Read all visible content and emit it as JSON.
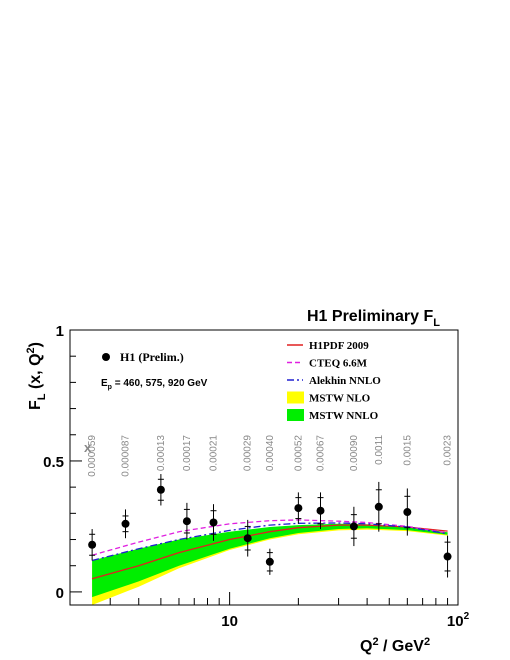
{
  "chart_data": {
    "type": "scatter",
    "title_main": "H1 Preliminary F",
    "title_sub": "L",
    "ylabel_main": "F",
    "ylabel_sub": "L",
    "ylabel_rest": " (x, Q",
    "ylabel_sup": "2",
    "ylabel_end": ")",
    "xlabel_main": "Q",
    "xlabel_sup1": "2",
    "xlabel_mid": " / GeV",
    "xlabel_sup2": "2",
    "x_scale": "log",
    "xlim": [
      2.0,
      100
    ],
    "ylim": [
      -0.05,
      1.0
    ],
    "y_ticks": [
      {
        "value": 0,
        "label": "0"
      },
      {
        "value": 0.5,
        "label": "0.5"
      },
      {
        "value": 1,
        "label": "1"
      }
    ],
    "x_tick_labels": [
      {
        "value": 10,
        "label": "10"
      },
      {
        "value": 100,
        "label": "10",
        "sup": "2"
      }
    ],
    "x_minor_ticks": [
      2,
      3,
      4,
      5,
      6,
      7,
      8,
      9,
      20,
      30,
      40,
      50,
      60,
      70,
      80,
      90
    ],
    "x_row_label": "x",
    "x_values_row": [
      {
        "q2": 2.5,
        "label": "0.000059"
      },
      {
        "q2": 3.5,
        "label": "0.000087"
      },
      {
        "q2": 5.0,
        "label": "0.00013"
      },
      {
        "q2": 6.5,
        "label": "0.00017"
      },
      {
        "q2": 8.5,
        "label": "0.00021"
      },
      {
        "q2": 12,
        "label": "0.00029"
      },
      {
        "q2": 15,
        "label": "0.00040"
      },
      {
        "q2": 20,
        "label": "0.00052"
      },
      {
        "q2": 25,
        "label": "0.00067"
      },
      {
        "q2": 35,
        "label": "0.00090"
      },
      {
        "q2": 45,
        "label": "0.0011"
      },
      {
        "q2": 60,
        "label": "0.0015"
      },
      {
        "q2": 90,
        "label": "0.0023"
      }
    ],
    "points": [
      {
        "q2": 2.5,
        "y": 0.18,
        "stat": 0.04,
        "tot": 0.06
      },
      {
        "q2": 3.5,
        "y": 0.26,
        "stat": 0.03,
        "tot": 0.055
      },
      {
        "q2": 5.0,
        "y": 0.39,
        "stat": 0.04,
        "tot": 0.06
      },
      {
        "q2": 6.5,
        "y": 0.27,
        "stat": 0.045,
        "tot": 0.07
      },
      {
        "q2": 8.5,
        "y": 0.265,
        "stat": 0.045,
        "tot": 0.07
      },
      {
        "q2": 12,
        "y": 0.205,
        "stat": 0.045,
        "tot": 0.07
      },
      {
        "q2": 15,
        "y": 0.115,
        "stat": 0.035,
        "tot": 0.05
      },
      {
        "q2": 20,
        "y": 0.32,
        "stat": 0.04,
        "tot": 0.06
      },
      {
        "q2": 25,
        "y": 0.31,
        "stat": 0.05,
        "tot": 0.07
      },
      {
        "q2": 35,
        "y": 0.25,
        "stat": 0.045,
        "tot": 0.075
      },
      {
        "q2": 45,
        "y": 0.325,
        "stat": 0.065,
        "tot": 0.095
      },
      {
        "q2": 60,
        "y": 0.305,
        "stat": 0.06,
        "tot": 0.09
      },
      {
        "q2": 90,
        "y": 0.135,
        "stat": 0.055,
        "tot": 0.08
      }
    ],
    "curves": [
      {
        "name": "H1PDF 2009",
        "color": "#e02020",
        "dash": "",
        "points": [
          [
            2.5,
            0.05
          ],
          [
            4,
            0.1
          ],
          [
            6,
            0.15
          ],
          [
            10,
            0.2
          ],
          [
            15,
            0.23
          ],
          [
            20,
            0.245
          ],
          [
            30,
            0.255
          ],
          [
            40,
            0.255
          ],
          [
            60,
            0.248
          ],
          [
            90,
            0.232
          ]
        ]
      },
      {
        "name": "CTEQ 6.6M",
        "color": "#e020e0",
        "dash": "5,3",
        "points": [
          [
            2.5,
            0.14
          ],
          [
            4,
            0.19
          ],
          [
            6,
            0.23
          ],
          [
            10,
            0.26
          ],
          [
            15,
            0.272
          ],
          [
            20,
            0.275
          ],
          [
            30,
            0.27
          ],
          [
            40,
            0.265
          ],
          [
            60,
            0.25
          ],
          [
            90,
            0.225
          ]
        ]
      },
      {
        "name": "Alekhin NNLO",
        "color": "#2020d0",
        "dash": "7,3,2,3",
        "points": [
          [
            2.5,
            0.12
          ],
          [
            4,
            0.165
          ],
          [
            6,
            0.2
          ],
          [
            10,
            0.235
          ],
          [
            15,
            0.255
          ],
          [
            20,
            0.262
          ],
          [
            30,
            0.263
          ],
          [
            40,
            0.26
          ],
          [
            60,
            0.248
          ],
          [
            90,
            0.222
          ]
        ]
      }
    ],
    "bands": [
      {
        "name": "MSTW NLO",
        "color": "#ffff00",
        "upper": [
          [
            2.5,
            0.11
          ],
          [
            4,
            0.16
          ],
          [
            6,
            0.195
          ],
          [
            10,
            0.225
          ],
          [
            15,
            0.242
          ],
          [
            20,
            0.25
          ],
          [
            30,
            0.255
          ],
          [
            40,
            0.255
          ],
          [
            60,
            0.245
          ],
          [
            90,
            0.225
          ]
        ],
        "lower": [
          [
            2.5,
            -0.05
          ],
          [
            4,
            0.02
          ],
          [
            6,
            0.09
          ],
          [
            10,
            0.16
          ],
          [
            15,
            0.2
          ],
          [
            20,
            0.22
          ],
          [
            30,
            0.235
          ],
          [
            40,
            0.238
          ],
          [
            60,
            0.232
          ],
          [
            90,
            0.215
          ]
        ]
      },
      {
        "name": "MSTW NNLO",
        "color": "#00ee00",
        "upper": [
          [
            2.5,
            0.12
          ],
          [
            4,
            0.165
          ],
          [
            6,
            0.2
          ],
          [
            10,
            0.23
          ],
          [
            15,
            0.248
          ],
          [
            20,
            0.255
          ],
          [
            30,
            0.26
          ],
          [
            40,
            0.258
          ],
          [
            60,
            0.248
          ],
          [
            90,
            0.228
          ]
        ],
        "lower": [
          [
            2.5,
            -0.02
          ],
          [
            4,
            0.04
          ],
          [
            6,
            0.1
          ],
          [
            10,
            0.165
          ],
          [
            15,
            0.205
          ],
          [
            20,
            0.225
          ],
          [
            30,
            0.24
          ],
          [
            40,
            0.243
          ],
          [
            60,
            0.236
          ],
          [
            90,
            0.218
          ]
        ]
      }
    ],
    "legend_data_label": "H1 (Prelim.)",
    "legend_ep_main": "E",
    "legend_ep_sub": "p",
    "legend_ep_rest": " = 460, 575, 920 GeV",
    "legend_placement": "inside-top"
  }
}
